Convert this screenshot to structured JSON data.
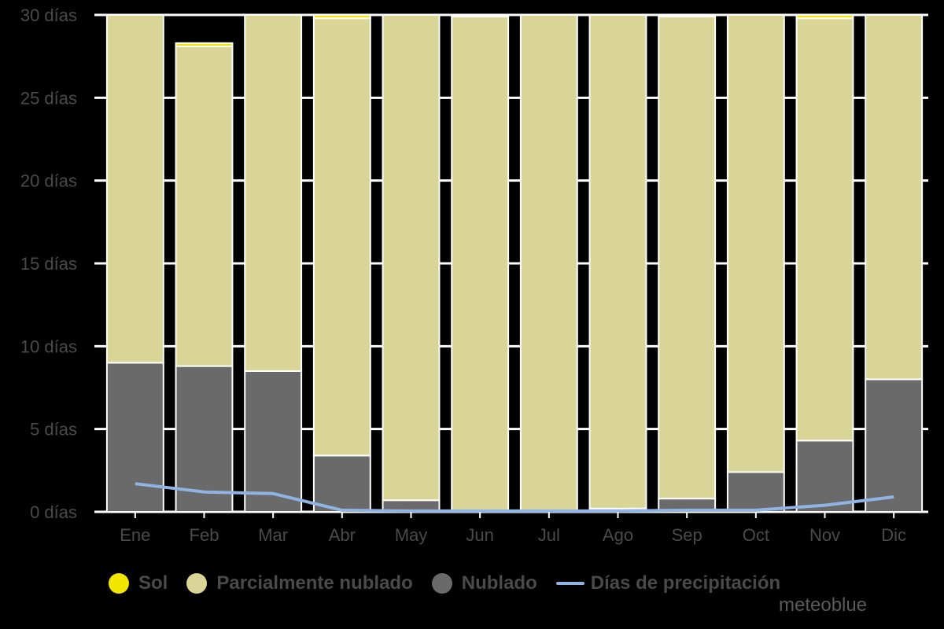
{
  "colors": {
    "sun": "#f2e600",
    "partly": "#d9d597",
    "cloudy": "#6a6a6a",
    "precip": "#8fb4e3",
    "grid": "#ffffff",
    "axis_text": "#4a4a4a",
    "background": "#000000"
  },
  "legend": [
    {
      "label": "Sol",
      "color_key": "sun",
      "shape": "dot"
    },
    {
      "label": "Parcialmente nublado",
      "color_key": "partly",
      "shape": "dot"
    },
    {
      "label": "Nublado",
      "color_key": "cloudy",
      "shape": "dot"
    },
    {
      "label": "Días de precipitación",
      "color_key": "precip",
      "shape": "line"
    }
  ],
  "brand": "meteoblue",
  "chart_data": {
    "type": "bar",
    "stacked": true,
    "categories": [
      "Ene",
      "Feb",
      "Mar",
      "Abr",
      "May",
      "Jun",
      "Jul",
      "Ago",
      "Sep",
      "Oct",
      "Nov",
      "Dic"
    ],
    "series": [
      {
        "name": "Nublado",
        "color_key": "cloudy",
        "values": [
          9.0,
          8.8,
          8.5,
          3.4,
          0.7,
          0.1,
          0.1,
          0.2,
          0.8,
          2.4,
          4.3,
          8.0
        ]
      },
      {
        "name": "Parcialmente nublado",
        "color_key": "partly",
        "values": [
          22.0,
          19.3,
          22.5,
          26.4,
          30.3,
          29.8,
          30.9,
          30.8,
          29.1,
          28.6,
          25.5,
          23.0
        ]
      },
      {
        "name": "Sol",
        "color_key": "sun",
        "values": [
          0.0,
          0.2,
          0.0,
          0.2,
          0.0,
          0.1,
          0.0,
          0.0,
          0.1,
          0.0,
          0.2,
          0.0
        ]
      }
    ],
    "line_series": {
      "name": "Días de precipitación",
      "color_key": "precip",
      "values": [
        1.7,
        1.2,
        1.1,
        0.1,
        0.05,
        0.05,
        0.05,
        0.05,
        0.1,
        0.1,
        0.4,
        0.9
      ]
    },
    "ylim": [
      0,
      30
    ],
    "yticks": [
      0,
      5,
      10,
      15,
      20,
      25,
      30
    ],
    "ytick_labels": [
      "0 días",
      "5 días",
      "10 días",
      "15 días",
      "20 días",
      "25 días",
      "30 días"
    ],
    "grid": true,
    "legend_position": "bottom"
  }
}
